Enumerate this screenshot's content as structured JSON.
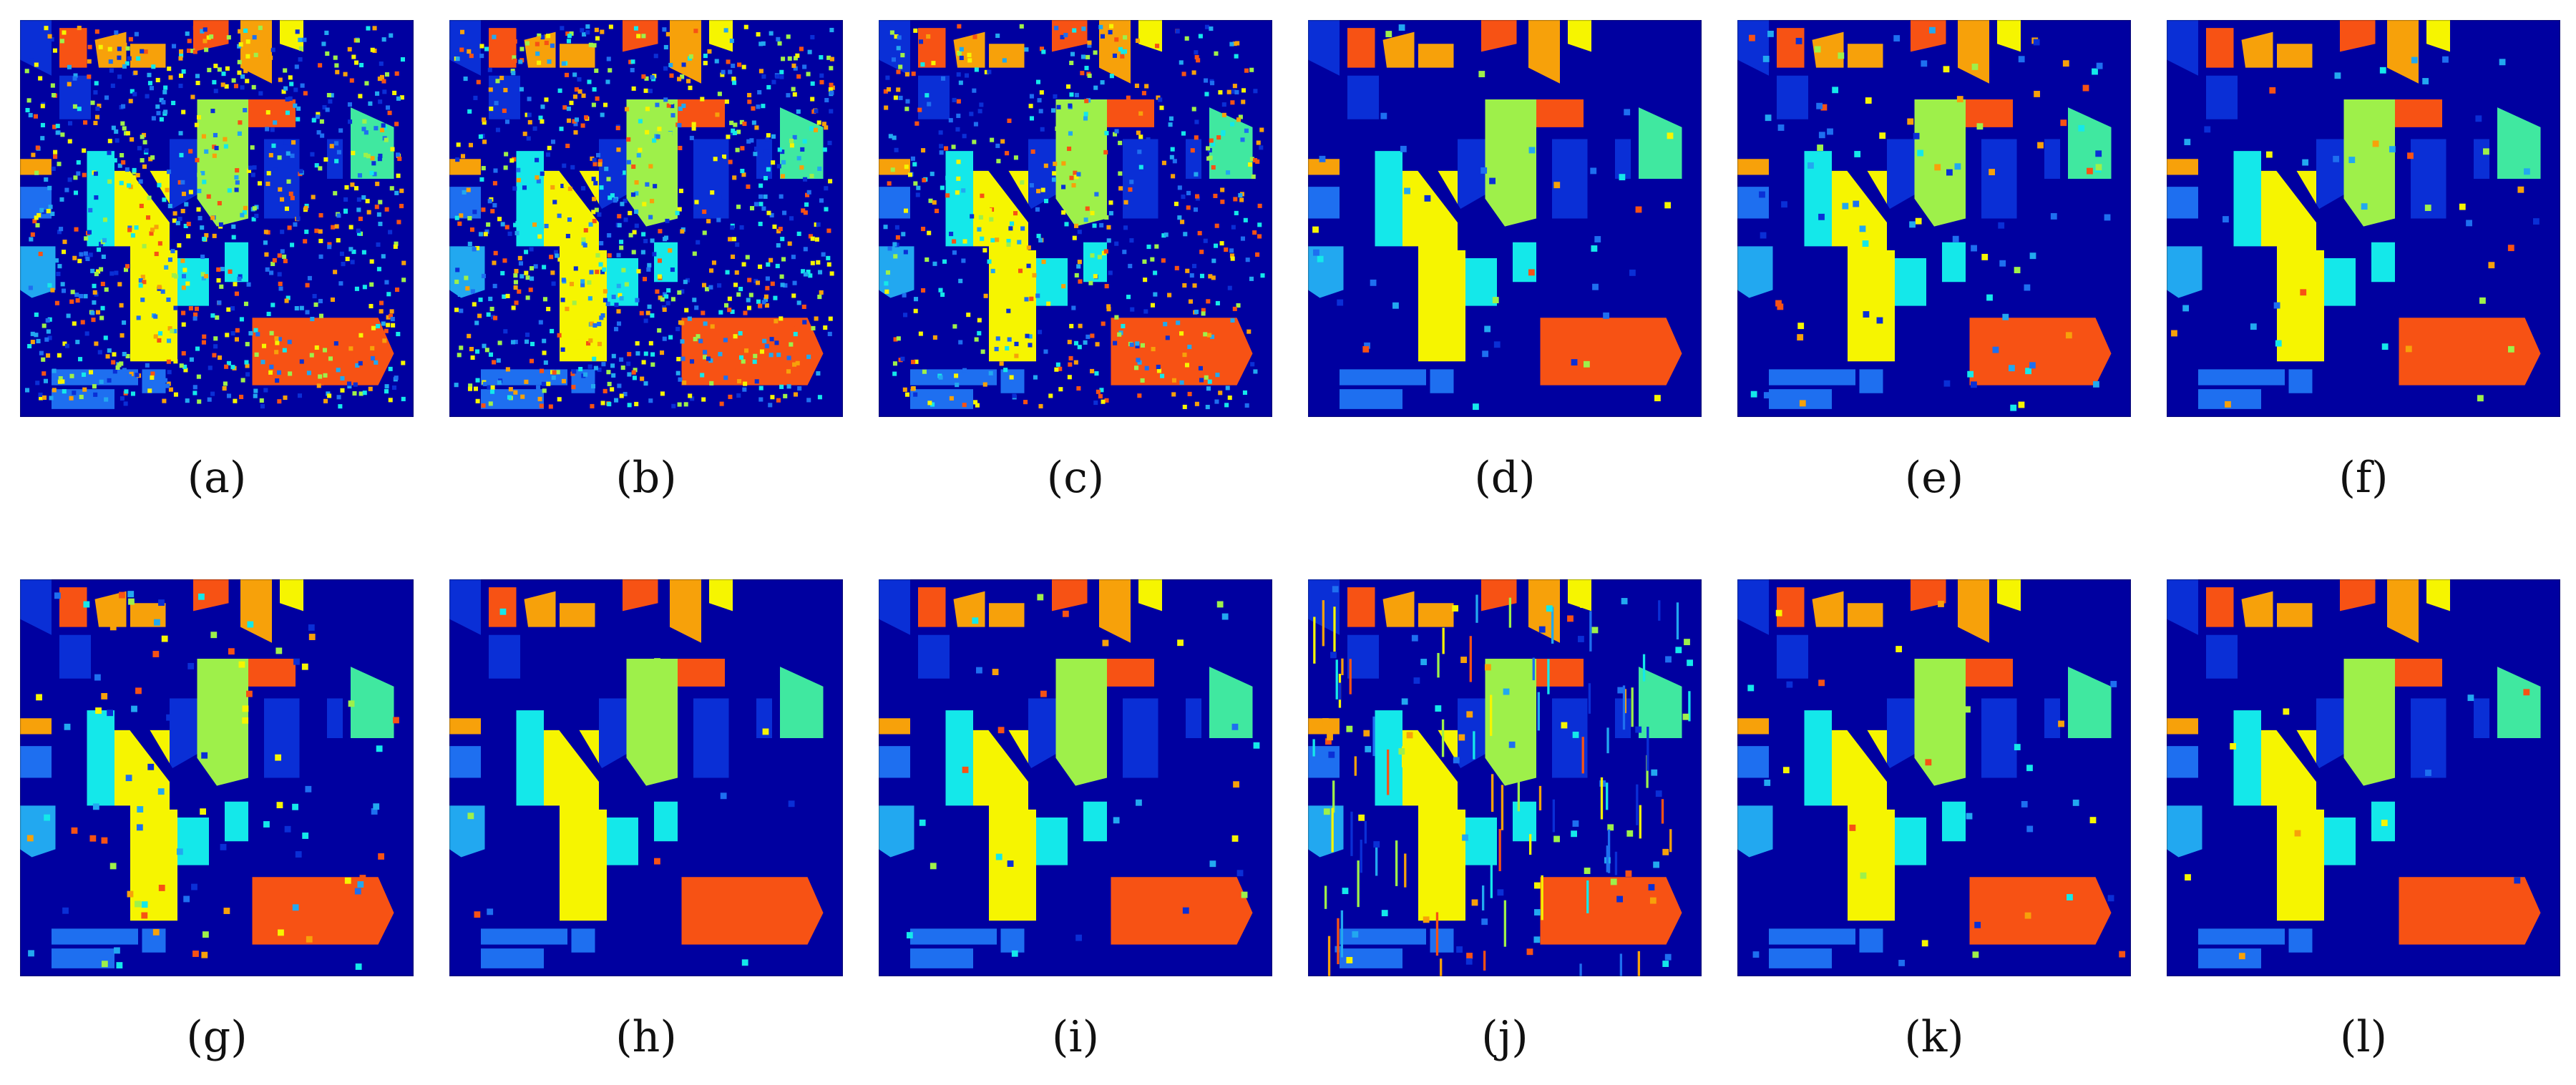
{
  "figure": {
    "panels": [
      {
        "label": "(a)",
        "variant": "noisy-heavy"
      },
      {
        "label": "(b)",
        "variant": "noisy-heavy"
      },
      {
        "label": "(c)",
        "variant": "noisy-medium"
      },
      {
        "label": "(d)",
        "variant": "smooth-wide"
      },
      {
        "label": "(e)",
        "variant": "smooth-errors"
      },
      {
        "label": "(f)",
        "variant": "smooth-wide"
      },
      {
        "label": "(g)",
        "variant": "smooth-errors"
      },
      {
        "label": "(h)",
        "variant": "clean"
      },
      {
        "label": "(i)",
        "variant": "clean-minor"
      },
      {
        "label": "(j)",
        "variant": "streaked"
      },
      {
        "label": "(k)",
        "variant": "clean-minor"
      },
      {
        "label": "(l)",
        "variant": "clean"
      }
    ],
    "colors": {
      "background": "#0000a0",
      "blue": "#0a2fd6",
      "mid_blue": "#1e6ff0",
      "sky": "#22a8f0",
      "cyan": "#14e8ea",
      "teal": "#40e8a0",
      "green": "#9ef04a",
      "lime": "#c9f53a",
      "yellow": "#f6f500",
      "orange": "#f7a10a",
      "red_orange": "#f75214",
      "frame": "#1a1a1a"
    }
  }
}
